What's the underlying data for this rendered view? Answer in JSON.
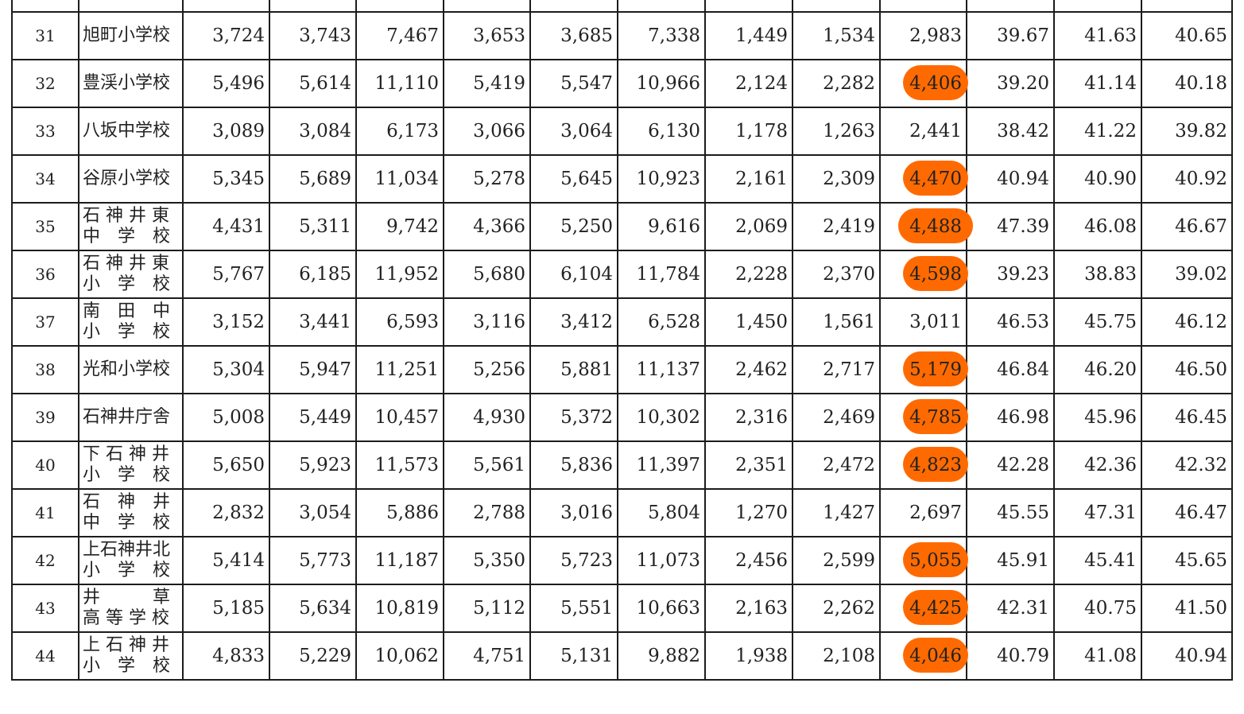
{
  "highlight_color": "#ff6a00",
  "rows": [
    {
      "no": "31",
      "name": [
        "旭町小学校"
      ],
      "values": [
        "3,724",
        "3,743",
        "7,467",
        "3,653",
        "3,685",
        "7,338",
        "1,449",
        "1,534",
        "2,983",
        "39.67",
        "41.63",
        "40.65"
      ],
      "highlight": false
    },
    {
      "no": "32",
      "name": [
        "豊渓小学校"
      ],
      "values": [
        "5,496",
        "5,614",
        "11,110",
        "5,419",
        "5,547",
        "10,966",
        "2,124",
        "2,282",
        "4,406",
        "39.20",
        "41.14",
        "40.18"
      ],
      "highlight": true
    },
    {
      "no": "33",
      "name": [
        "八坂中学校"
      ],
      "values": [
        "3,089",
        "3,084",
        "6,173",
        "3,066",
        "3,064",
        "6,130",
        "1,178",
        "1,263",
        "2,441",
        "38.42",
        "41.22",
        "39.82"
      ],
      "highlight": false
    },
    {
      "no": "34",
      "name": [
        "谷原小学校"
      ],
      "values": [
        "5,345",
        "5,689",
        "11,034",
        "5,278",
        "5,645",
        "10,923",
        "2,161",
        "2,309",
        "4,470",
        "40.94",
        "40.90",
        "40.92"
      ],
      "highlight": true
    },
    {
      "no": "35",
      "name": [
        "石 神 井 東",
        "中　学　校"
      ],
      "values": [
        "4,431",
        "5,311",
        "9,742",
        "4,366",
        "5,250",
        "9,616",
        "2,069",
        "2,419",
        "4,488",
        "47.39",
        "46.08",
        "46.67"
      ],
      "highlight": true
    },
    {
      "no": "36",
      "name": [
        "石 神 井 東",
        "小　学　校"
      ],
      "values": [
        "5,767",
        "6,185",
        "11,952",
        "5,680",
        "6,104",
        "11,784",
        "2,228",
        "2,370",
        "4,598",
        "39.23",
        "38.83",
        "39.02"
      ],
      "highlight": true
    },
    {
      "no": "37",
      "name": [
        "南　田　中",
        "小　学　校"
      ],
      "values": [
        "3,152",
        "3,441",
        "6,593",
        "3,116",
        "3,412",
        "6,528",
        "1,450",
        "1,561",
        "3,011",
        "46.53",
        "45.75",
        "46.12"
      ],
      "highlight": false
    },
    {
      "no": "38",
      "name": [
        "光和小学校"
      ],
      "values": [
        "5,304",
        "5,947",
        "11,251",
        "5,256",
        "5,881",
        "11,137",
        "2,462",
        "2,717",
        "5,179",
        "46.84",
        "46.20",
        "46.50"
      ],
      "highlight": true
    },
    {
      "no": "39",
      "name": [
        "石神井庁舎"
      ],
      "values": [
        "5,008",
        "5,449",
        "10,457",
        "4,930",
        "5,372",
        "10,302",
        "2,316",
        "2,469",
        "4,785",
        "46.98",
        "45.96",
        "46.45"
      ],
      "highlight": true
    },
    {
      "no": "40",
      "name": [
        "下 石 神 井",
        "小　学　校"
      ],
      "values": [
        "5,650",
        "5,923",
        "11,573",
        "5,561",
        "5,836",
        "11,397",
        "2,351",
        "2,472",
        "4,823",
        "42.28",
        "42.36",
        "42.32"
      ],
      "highlight": true
    },
    {
      "no": "41",
      "name": [
        "石　神　井",
        "中　学　校"
      ],
      "values": [
        "2,832",
        "3,054",
        "5,886",
        "2,788",
        "3,016",
        "5,804",
        "1,270",
        "1,427",
        "2,697",
        "45.55",
        "47.31",
        "46.47"
      ],
      "highlight": false
    },
    {
      "no": "42",
      "name": [
        "上石神井北",
        "小　学　校"
      ],
      "values": [
        "5,414",
        "5,773",
        "11,187",
        "5,350",
        "5,723",
        "11,073",
        "2,456",
        "2,599",
        "5,055",
        "45.91",
        "45.41",
        "45.65"
      ],
      "highlight": true
    },
    {
      "no": "43",
      "name": [
        "井　　　草",
        "高 等 学 校"
      ],
      "values": [
        "5,185",
        "5,634",
        "10,819",
        "5,112",
        "5,551",
        "10,663",
        "2,163",
        "2,262",
        "4,425",
        "42.31",
        "40.75",
        "41.50"
      ],
      "highlight": true
    },
    {
      "no": "44",
      "name": [
        "上 石 神 井",
        "小　学　校"
      ],
      "values": [
        "4,833",
        "5,229",
        "10,062",
        "4,751",
        "5,131",
        "9,882",
        "1,938",
        "2,108",
        "4,046",
        "40.79",
        "41.08",
        "40.94"
      ],
      "highlight": true
    }
  ]
}
